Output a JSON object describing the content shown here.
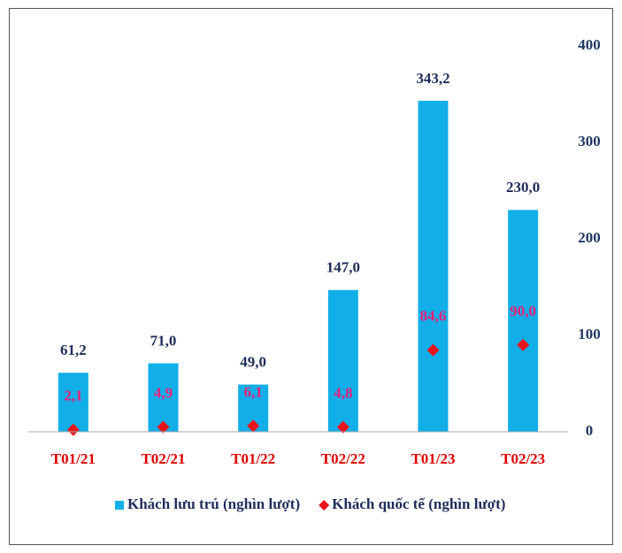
{
  "chart_data": {
    "type": "bar",
    "categories": [
      "T01/21",
      "T02/21",
      "T01/22",
      "T02/22",
      "T01/23",
      "T02/23"
    ],
    "series": [
      {
        "name": "Khách lưu trú (nghìn lượt)",
        "type": "bar",
        "color": "#12aee8",
        "values": [
          61.2,
          71.0,
          49.0,
          147.0,
          343.2,
          230.0
        ],
        "value_labels": [
          "61,2",
          "71,0",
          "49,0",
          "147,0",
          "343,2",
          "230,0"
        ]
      },
      {
        "name": "Khách quốc tế (nghìn lượt)",
        "type": "scatter",
        "color": "#e8141c",
        "values": [
          2.1,
          4.9,
          6.1,
          4.8,
          84.6,
          90.0
        ],
        "value_labels": [
          "2,1",
          "4,9",
          "6,1",
          "4,8",
          "84,6",
          "90,0"
        ]
      }
    ],
    "ylim": [
      0,
      400
    ],
    "yticks": [
      0,
      100,
      200,
      300,
      400
    ],
    "grid": false,
    "legend": "bottom"
  }
}
